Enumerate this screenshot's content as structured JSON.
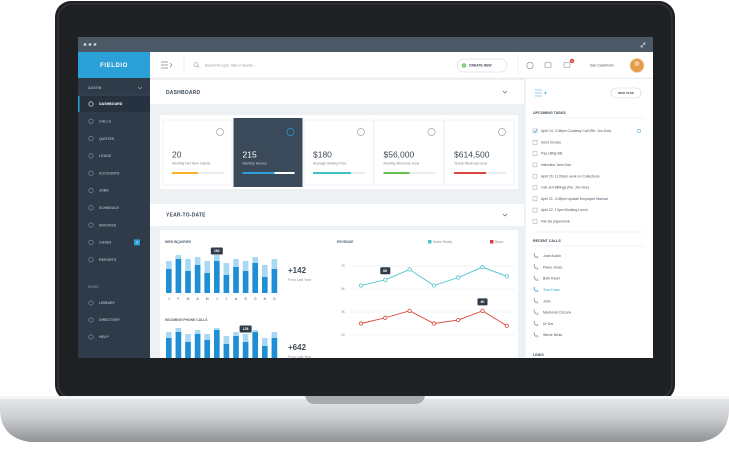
{
  "window": {
    "logo": "FIELDIO"
  },
  "sidebar": {
    "location": "AUSTIN",
    "items": [
      "DASHBOARD",
      "CALLS",
      "QUOTES",
      "LEADS",
      "ACCOUNTS",
      "JOBS",
      "SCHEDULE",
      "INVOICES",
      "CASES",
      "REPORTS"
    ],
    "cases_badge": "3",
    "more_label": "MORE",
    "more_items": [
      "LIBRARY",
      "DIRECTORY",
      "HELP"
    ]
  },
  "topbar": {
    "search_placeholder": "Search for a job, task or income...",
    "create_button": "CREATE NEW",
    "notification_count": "2",
    "user_name": "Dan Cederholm"
  },
  "dashboard": {
    "title": "DASHBOARD",
    "cards": [
      {
        "value": "20",
        "label": "Monthly Net New Clients",
        "color": "#f5b325",
        "active": false
      },
      {
        "value": "215",
        "label": "Monthly Homes",
        "color": "#2a9fd8",
        "active": true
      },
      {
        "value": "$180",
        "label": "Average Selling Price",
        "color": "#3cc3c8",
        "active": false
      },
      {
        "value": "$56,000",
        "label": "Monthly Revenue Goal",
        "color": "#6bbf4e",
        "active": false
      },
      {
        "value": "$614,500",
        "label": "Yearly Revenue Goal",
        "color": "#d9443a",
        "active": false
      }
    ]
  },
  "year_to_date": {
    "title": "YEAR-TO-DATE",
    "web_inquiries": {
      "title": "WEB INQUIRIES",
      "categories": [
        "J",
        "F",
        "M",
        "A",
        "M",
        "J",
        "J",
        "A",
        "S",
        "O",
        "N",
        "D"
      ],
      "ylim": [
        0,
        100
      ],
      "background_values": [
        80,
        95,
        85,
        90,
        80,
        95,
        75,
        85,
        80,
        90,
        70,
        85
      ],
      "values": [
        60,
        85,
        55,
        70,
        50,
        80,
        45,
        65,
        55,
        75,
        40,
        60
      ],
      "tooltip": "182",
      "stat": "+142",
      "stat_label": "From Last Year"
    },
    "incoming_calls": {
      "title": "INCOMING PHONE CALLS",
      "ylim": [
        0,
        100
      ],
      "background_values": [
        85,
        95,
        80,
        90,
        80,
        95,
        75,
        85,
        80,
        90,
        70,
        85
      ],
      "values": [
        70,
        85,
        60,
        80,
        65,
        90,
        55,
        75,
        60,
        85,
        50,
        70
      ],
      "tooltip": "128",
      "stat": "+642",
      "stat_label": "From Last Year"
    },
    "revenue": {
      "title": "REVENUE",
      "ylim": [
        0,
        8000
      ],
      "yticks": [
        {
          "value": 1000,
          "label": "1K"
        },
        {
          "value": 3000,
          "label": "3K"
        },
        {
          "value": 5000,
          "label": "5K"
        },
        {
          "value": 7000,
          "label": "7K"
        }
      ],
      "series": [
        {
          "name": "Wake Realty",
          "color": "#4ec3c9",
          "values": [
            5300,
            5800,
            6700,
            5300,
            6000,
            6900,
            6100
          ]
        },
        {
          "name": "Basic",
          "color": "#d9443a",
          "values": [
            2000,
            2500,
            3100,
            2000,
            2300,
            3100,
            1800
          ]
        }
      ],
      "annotations": [
        "6K",
        "4K"
      ]
    }
  },
  "tasks": {
    "button": "NEW TASK",
    "upcoming_title": "UPCOMING TASKS",
    "items": [
      "April 14, 3:45pm Courtesy Call (Re: Jon Doe)",
      "Send Invoice",
      "Pay Utility Bill",
      "Interview John Doe",
      "April 20, 11:00am work on Collections",
      "Call Jen Millings (Re: Jon Doe)",
      "April 21, 3:45pm Update Employee Manual",
      "April 22, 12pm Working Lunch",
      "File tax paperwork"
    ],
    "recent_calls_title": "RECENT CALLS",
    "calls": [
      "Jose Austin",
      "Paulo Jones",
      "Beth Redd",
      "Tina Fores",
      "John",
      "Madonna Ciccone",
      "Dr Dre",
      "Stevie Nicks"
    ],
    "links_title": "LINKS"
  }
}
